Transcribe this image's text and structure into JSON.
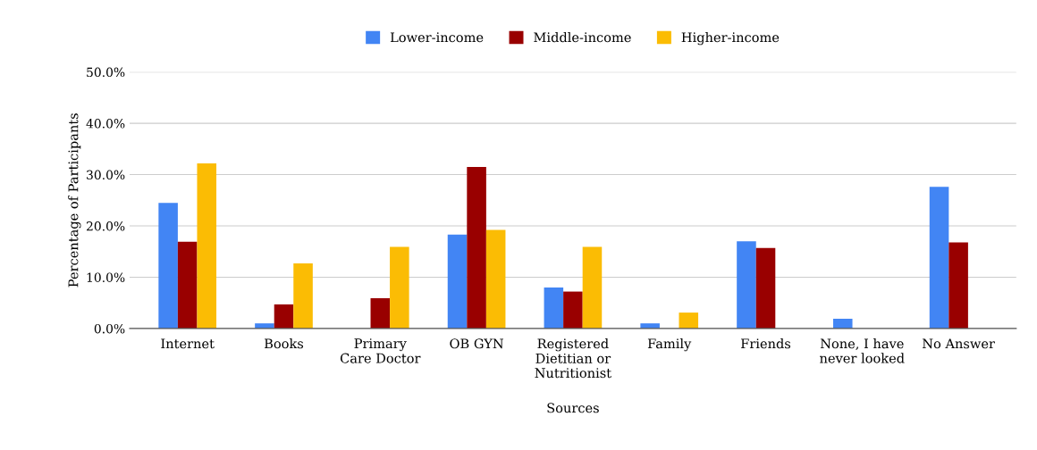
{
  "chart_data": {
    "type": "bar",
    "categories": [
      "Internet",
      "Books",
      "Primary\nCare Doctor",
      "OB GYN",
      "Registered\nDietitian or\nNutritionist",
      "Family",
      "Friends",
      "None, I have\nnever looked",
      "No Answer"
    ],
    "series": [
      {
        "name": "Lower-income",
        "color": "#4285f4",
        "values": [
          24.5,
          1.0,
          0,
          18.3,
          8.0,
          1.0,
          17.0,
          1.9,
          27.6
        ]
      },
      {
        "name": "Middle-income",
        "color": "#990000",
        "values": [
          16.9,
          4.7,
          5.9,
          31.5,
          7.2,
          0,
          15.7,
          0,
          16.8
        ]
      },
      {
        "name": "Higher-income",
        "color": "#fbbc04",
        "values": [
          32.2,
          12.7,
          15.9,
          19.2,
          15.9,
          3.1,
          0,
          0,
          0
        ]
      }
    ],
    "xlabel": "Sources",
    "ylabel": "Percentage of Participants",
    "ylim": [
      0,
      50
    ],
    "yticks": [
      {
        "value": 0,
        "label": "0.0%"
      },
      {
        "value": 10,
        "label": "10.0%"
      },
      {
        "value": 20,
        "label": "20.0%"
      },
      {
        "value": 30,
        "label": "30.0%"
      },
      {
        "value": 40,
        "label": "40.0%"
      },
      {
        "value": 50,
        "label": "50.0%"
      }
    ],
    "grid": "y",
    "legend": "top"
  }
}
